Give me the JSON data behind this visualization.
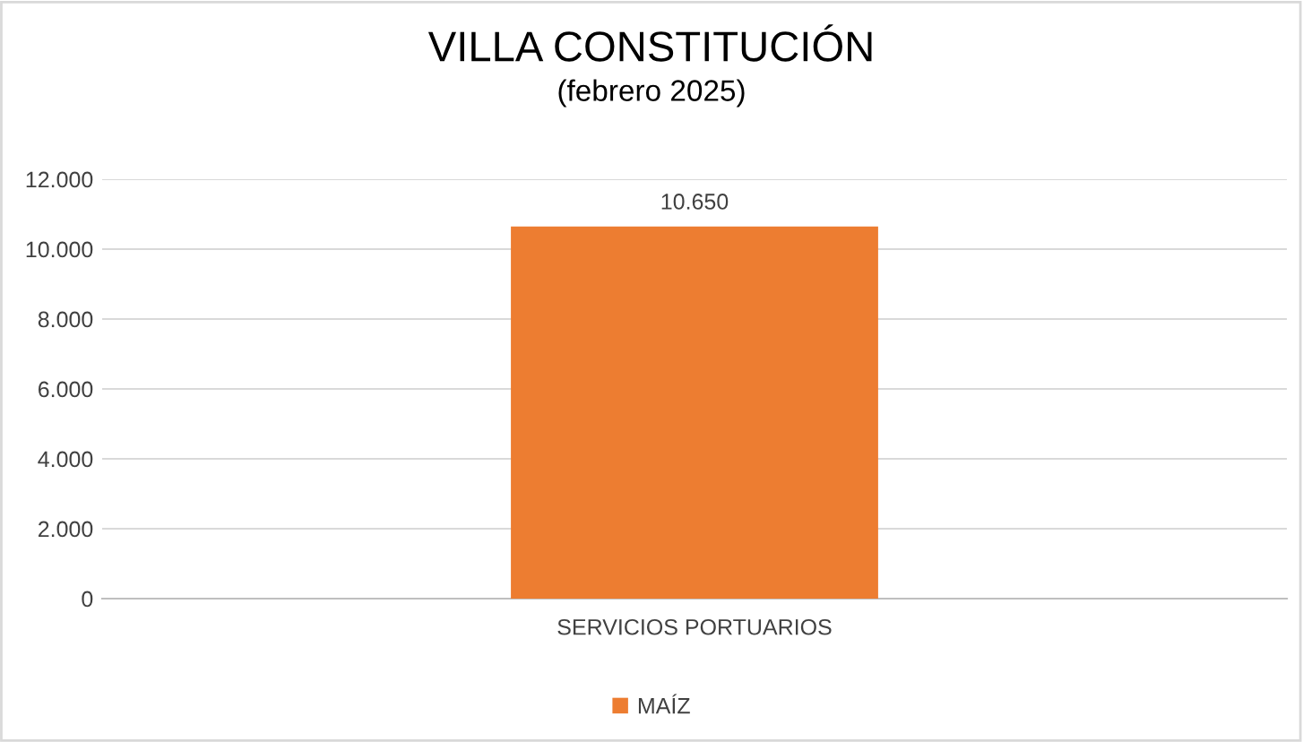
{
  "chart_data": {
    "type": "bar",
    "title": "VILLA CONSTITUCIÓN",
    "subtitle": "(febrero 2025)",
    "categories": [
      "SERVICIOS PORTUARIOS"
    ],
    "series": [
      {
        "name": "MAÍZ",
        "color": "#ed7d31",
        "values": [
          10650
        ]
      }
    ],
    "value_labels": [
      "10.650"
    ],
    "ylim": [
      0,
      12000
    ],
    "yticks": [
      0,
      {
        "value": 2000,
        "label": "2.000"
      },
      {
        "value": 4000,
        "label": "4.000"
      },
      {
        "value": 6000,
        "label": "6.000"
      },
      {
        "value": 8000,
        "label": "8.000"
      },
      {
        "value": 10000,
        "label": "10.000"
      },
      {
        "value": 12000,
        "label": "12.000"
      }
    ],
    "grid": "y",
    "legend": "bottom"
  }
}
